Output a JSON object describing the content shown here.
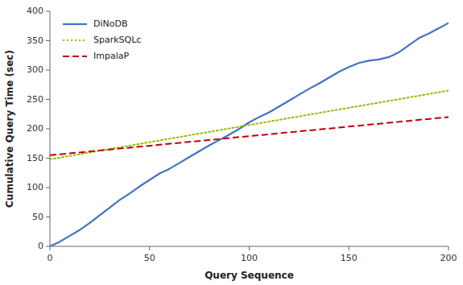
{
  "chart_data": {
    "type": "line",
    "xlabel": "Query Sequence",
    "ylabel": "Cumulative Query Time (sec)",
    "xlim": [
      0,
      200
    ],
    "ylim": [
      0,
      400
    ],
    "xticks": [
      0,
      50,
      100,
      150,
      200
    ],
    "yticks": [
      0,
      50,
      100,
      150,
      200,
      250,
      300,
      350,
      400
    ],
    "grid": false,
    "legend": "upper left",
    "series": [
      {
        "name": "DiNoDB",
        "color": "#4472c4",
        "line_style": "solid",
        "x": [
          0,
          5,
          10,
          15,
          20,
          25,
          30,
          35,
          40,
          45,
          50,
          55,
          60,
          65,
          70,
          75,
          80,
          85,
          90,
          95,
          100,
          105,
          110,
          115,
          120,
          125,
          130,
          135,
          140,
          145,
          150,
          155,
          160,
          165,
          170,
          172,
          175,
          180,
          185,
          190,
          195,
          200
        ],
        "values": [
          0,
          8,
          18,
          28,
          40,
          53,
          66,
          79,
          90,
          102,
          113,
          124,
          132,
          142,
          152,
          162,
          172,
          181,
          190,
          200,
          211,
          220,
          228,
          238,
          248,
          258,
          268,
          277,
          287,
          297,
          305,
          312,
          316,
          318,
          322,
          325,
          330,
          342,
          354,
          362,
          371,
          380
        ]
      },
      {
        "name": "SparkSQLc",
        "color": "#9bbb00",
        "line_style": "dotted",
        "x": [
          0,
          200
        ],
        "values": [
          148,
          265
        ]
      },
      {
        "name": "ImpalaP",
        "color": "#c0000b",
        "line_style": "dashed",
        "x": [
          0,
          200
        ],
        "values": [
          155,
          220
        ]
      }
    ]
  }
}
